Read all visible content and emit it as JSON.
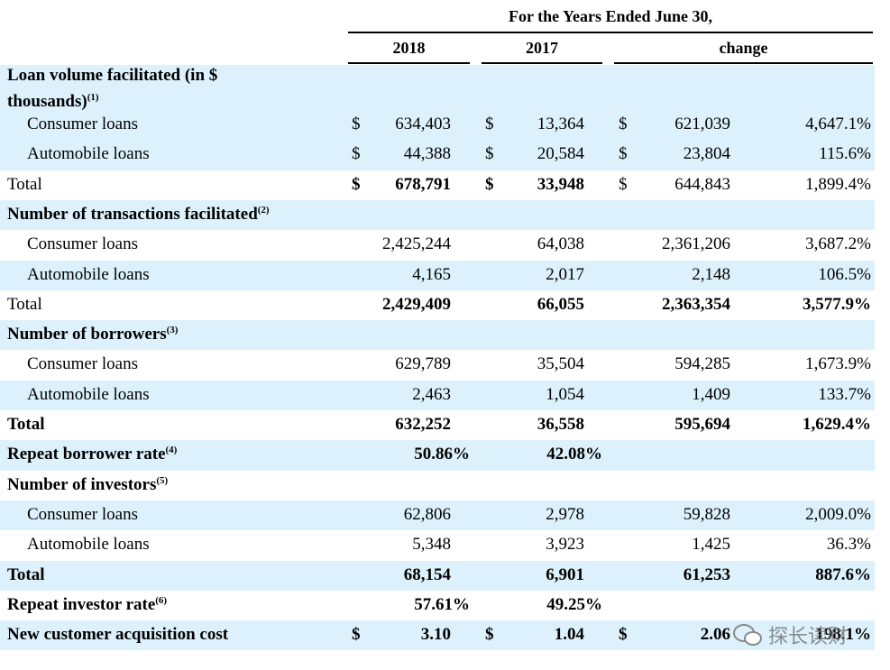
{
  "header": {
    "period": "For the Years Ended June 30,",
    "columns": [
      "2018",
      "2017",
      "change"
    ]
  },
  "currency": "$",
  "rows": [
    {
      "label": "Loan volume facilitated (in $ thousands)",
      "note": "(1)"
    },
    {
      "label": "Consumer loans",
      "values": [
        "634,403",
        "13,364",
        "621,039",
        "4,647.1%"
      ],
      "currency": true
    },
    {
      "label": "Automobile loans",
      "values": [
        "44,388",
        "20,584",
        "23,804",
        "115.6%"
      ],
      "currency": true
    },
    {
      "label": "Total",
      "values": [
        "678,791",
        "33,948",
        "644,843",
        "1,899.4%"
      ],
      "currency": true
    },
    {
      "label": "Number of transactions facilitated",
      "note": "(2)"
    },
    {
      "label": "Consumer loans",
      "values": [
        "2,425,244",
        "64,038",
        "2,361,206",
        "3,687.2%"
      ]
    },
    {
      "label": "Automobile loans",
      "values": [
        "4,165",
        "2,017",
        "2,148",
        "106.5%"
      ]
    },
    {
      "label": "Total",
      "values": [
        "2,429,409",
        "66,055",
        "2,363,354",
        "3,577.9%"
      ]
    },
    {
      "label": "Number of borrowers",
      "note": "(3)"
    },
    {
      "label": "Consumer loans",
      "values": [
        "629,789",
        "35,504",
        "594,285",
        "1,673.9%"
      ]
    },
    {
      "label": "Automobile loans",
      "values": [
        "2,463",
        "1,054",
        "1,409",
        "133.7%"
      ]
    },
    {
      "label": "Total",
      "values": [
        "632,252",
        "36,558",
        "595,694",
        "1,629.4%"
      ]
    },
    {
      "label": "Repeat borrower rate",
      "note": "(4)",
      "values": [
        "50.86%",
        "42.08%"
      ]
    },
    {
      "label": "Number of investors",
      "note": "(5)"
    },
    {
      "label": "Consumer loans",
      "values": [
        "62,806",
        "2,978",
        "59,828",
        "2,009.0%"
      ]
    },
    {
      "label": "Automobile loans",
      "values": [
        "5,348",
        "3,923",
        "1,425",
        "36.3%"
      ]
    },
    {
      "label": "Total",
      "values": [
        "68,154",
        "6,901",
        "61,253",
        "887.6%"
      ]
    },
    {
      "label": "Repeat investor rate",
      "note": "(6)",
      "values": [
        "57.61%",
        "49.25%"
      ]
    },
    {
      "label": "New customer acquisition cost",
      "values": [
        "3.10",
        "1.04",
        "2.06",
        "198.1%"
      ],
      "currency": true
    }
  ],
  "watermark": "探长读财"
}
